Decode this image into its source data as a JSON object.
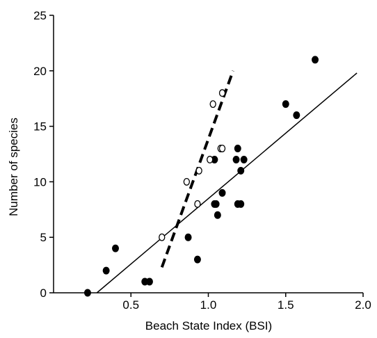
{
  "chart_data": {
    "type": "scatter",
    "title": "",
    "xlabel": "Beach State Index (BSI)",
    "ylabel": "Number of species",
    "xlim": [
      0,
      2.0
    ],
    "ylim": [
      0,
      25
    ],
    "x_ticks": [
      0.5,
      1.0,
      1.5,
      2.0
    ],
    "x_tick_labels": [
      "0.5",
      "1.0",
      "1.5",
      "2.0"
    ],
    "y_ticks": [
      0,
      5,
      10,
      15,
      20,
      25
    ],
    "y_tick_labels": [
      "0",
      "5",
      "10",
      "15",
      "20",
      "25"
    ],
    "grid": false,
    "legend": "none",
    "series": [
      {
        "marker": "filled-circle",
        "color": "#000000",
        "points": [
          {
            "x": 0.22,
            "y": 0
          },
          {
            "x": 0.34,
            "y": 2
          },
          {
            "x": 0.4,
            "y": 4
          },
          {
            "x": 0.59,
            "y": 1
          },
          {
            "x": 0.62,
            "y": 1
          },
          {
            "x": 0.87,
            "y": 5
          },
          {
            "x": 0.93,
            "y": 3
          },
          {
            "x": 1.04,
            "y": 8
          },
          {
            "x": 1.05,
            "y": 8
          },
          {
            "x": 1.04,
            "y": 12
          },
          {
            "x": 1.06,
            "y": 7
          },
          {
            "x": 1.09,
            "y": 9
          },
          {
            "x": 1.18,
            "y": 12
          },
          {
            "x": 1.19,
            "y": 13
          },
          {
            "x": 1.19,
            "y": 8
          },
          {
            "x": 1.21,
            "y": 8
          },
          {
            "x": 1.21,
            "y": 11
          },
          {
            "x": 1.23,
            "y": 12
          },
          {
            "x": 1.5,
            "y": 17
          },
          {
            "x": 1.57,
            "y": 16
          },
          {
            "x": 1.69,
            "y": 21
          }
        ]
      },
      {
        "marker": "open-circle",
        "color": "#000000",
        "points": [
          {
            "x": 0.7,
            "y": 5
          },
          {
            "x": 0.86,
            "y": 10
          },
          {
            "x": 0.93,
            "y": 8
          },
          {
            "x": 0.94,
            "y": 11
          },
          {
            "x": 1.01,
            "y": 12
          },
          {
            "x": 1.03,
            "y": 17
          },
          {
            "x": 1.08,
            "y": 13
          },
          {
            "x": 1.09,
            "y": 13
          },
          {
            "x": 1.09,
            "y": 18
          }
        ]
      }
    ],
    "fit_lines": [
      {
        "style": "solid",
        "color": "#000000",
        "x": [
          0.28,
          1.96
        ],
        "y": [
          0,
          19.8
        ]
      },
      {
        "style": "dashed",
        "color": "#000000",
        "x": [
          0.7,
          1.16
        ],
        "y": [
          2.3,
          20
        ]
      }
    ]
  }
}
